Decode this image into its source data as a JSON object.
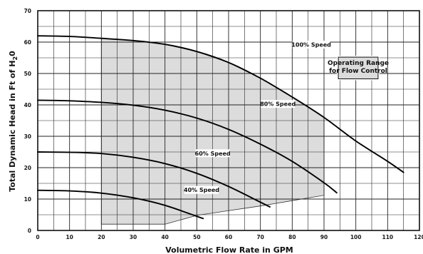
{
  "chart_data": {
    "type": "line",
    "xlabel": "Volumetric Flow Rate in GPM",
    "ylabel_main": "Total Dynamic Head in Ft of H",
    "ylabel_sub": "2",
    "ylabel_tail": "0",
    "xlim": [
      0,
      120
    ],
    "ylim": [
      0,
      70
    ],
    "x_ticks": [
      "0",
      "10",
      "20",
      "30",
      "40",
      "50",
      "60",
      "70",
      "80",
      "90",
      "100",
      "110",
      "120"
    ],
    "y_ticks": [
      "0",
      "10",
      "20",
      "30",
      "40",
      "50",
      "60",
      "70"
    ],
    "grid": true,
    "series": [
      {
        "name": "100% Speed",
        "x": [
          0,
          10,
          20,
          30,
          40,
          50,
          60,
          70,
          80,
          90,
          100,
          110,
          115
        ],
        "y": [
          62,
          61.8,
          61.2,
          60.5,
          59.3,
          57,
          53.5,
          48.5,
          42.5,
          36,
          28.5,
          22,
          18.5
        ]
      },
      {
        "name": "80% Speed",
        "x": [
          0,
          10,
          20,
          30,
          40,
          50,
          60,
          70,
          80,
          90,
          94
        ],
        "y": [
          41.5,
          41.3,
          40.8,
          39.9,
          38.3,
          35.8,
          32.2,
          27.5,
          22,
          15.2,
          12
        ]
      },
      {
        "name": "60% Speed",
        "x": [
          0,
          10,
          20,
          30,
          40,
          50,
          60,
          70,
          73
        ],
        "y": [
          25,
          24.9,
          24.5,
          23.3,
          21.3,
          18.2,
          14,
          9,
          7.5
        ]
      },
      {
        "name": "40% Speed",
        "x": [
          0,
          10,
          20,
          30,
          40,
          50,
          52
        ],
        "y": [
          12.8,
          12.6,
          11.9,
          10.4,
          8,
          4.5,
          3.8
        ]
      }
    ],
    "operating_range": {
      "label_line1": "Operating Range",
      "label_line2": "for Flow Control",
      "x": [
        20,
        30,
        40,
        50,
        60,
        70,
        80,
        90,
        90,
        80,
        70,
        60,
        50,
        40,
        20
      ],
      "y": [
        61.2,
        60.5,
        59.3,
        57,
        53.5,
        48.5,
        42.5,
        36,
        11.2,
        9.5,
        7.8,
        6.3,
        4.8,
        2,
        2
      ]
    },
    "annotations": [
      {
        "text": "100% Speed",
        "x": 86,
        "y": 59.2
      },
      {
        "text": "80% Speed",
        "x": 75.5,
        "y": 40.3
      },
      {
        "text": "60% Speed",
        "x": 55,
        "y": 24.6
      },
      {
        "text": "40% Speed",
        "x": 51.5,
        "y": 12.9
      }
    ]
  }
}
